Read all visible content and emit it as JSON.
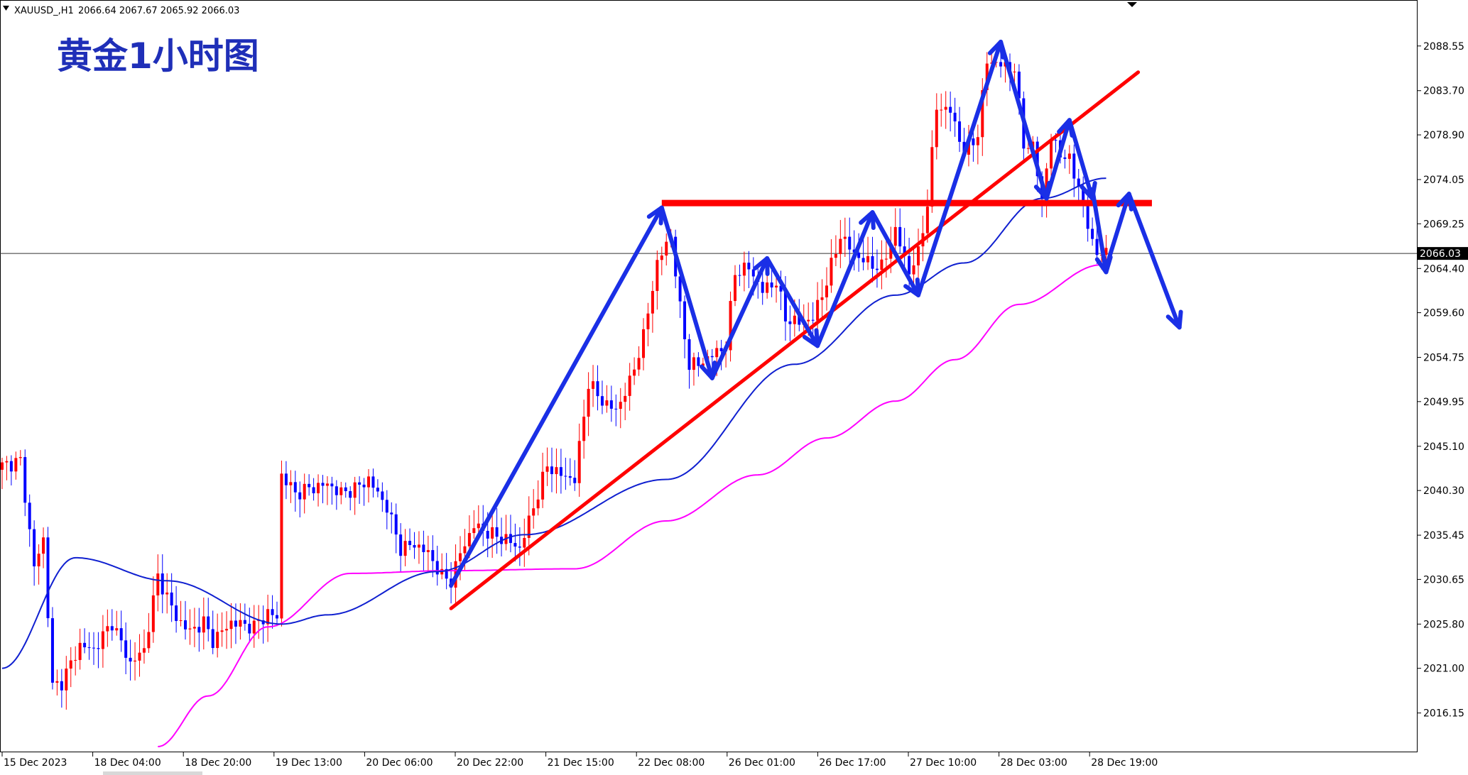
{
  "header": {
    "menu_icon": "triangle-down-icon",
    "symbol": "XAUUSD_,H1",
    "ohlc": "2066.64 2067.67 2065.92 2066.03"
  },
  "annotation_title": "黄金1小时图",
  "colors": {
    "bull_candle": "#ff0000",
    "bear_candle": "#0000ff",
    "ma_fast": "#1020d0",
    "ma_slow": "#ff00ff",
    "trendline": "#ff0000",
    "arrows": "#1a2fe6",
    "price_tag_bg": "#000000"
  },
  "current_price": {
    "value": 2066.03,
    "label": "2066.03"
  },
  "chart_data": {
    "type": "candlestick",
    "title": "黄金1小时图",
    "symbol": "XAUUSD_,H1",
    "timeframe": "H1",
    "y_range": [
      2012.5,
      2092.0
    ],
    "y_ticks": [
      "2088.55",
      "2083.70",
      "2078.90",
      "2074.05",
      "2069.25",
      "2064.40",
      "2059.60",
      "2054.75",
      "2049.95",
      "2045.10",
      "2040.30",
      "2035.45",
      "2030.65",
      "2025.80",
      "2021.00",
      "2016.15"
    ],
    "x_ticks": [
      "15 Dec 2023",
      "18 Dec 04:00",
      "18 Dec 20:00",
      "19 Dec 13:00",
      "20 Dec 06:00",
      "20 Dec 22:00",
      "21 Dec 15:00",
      "22 Dec 08:00",
      "26 Dec 01:00",
      "26 Dec 17:00",
      "27 Dec 10:00",
      "28 Dec 03:00",
      "28 Dec 19:00"
    ],
    "grid": false,
    "price_waypoints": [
      {
        "x": 0,
        "y": 2043.0
      },
      {
        "x": 4,
        "y": 2043.5
      },
      {
        "x": 7,
        "y": 2032.0
      },
      {
        "x": 9,
        "y": 2035.0
      },
      {
        "x": 11,
        "y": 2019.0
      },
      {
        "x": 13,
        "y": 2019.5
      },
      {
        "x": 17,
        "y": 2023.5
      },
      {
        "x": 20,
        "y": 2023.0
      },
      {
        "x": 24,
        "y": 2026.0
      },
      {
        "x": 28,
        "y": 2021.5
      },
      {
        "x": 31,
        "y": 2023.0
      },
      {
        "x": 34,
        "y": 2031.0
      },
      {
        "x": 38,
        "y": 2026.5
      },
      {
        "x": 41,
        "y": 2025.0
      },
      {
        "x": 44,
        "y": 2026.0
      },
      {
        "x": 46,
        "y": 2024.0
      },
      {
        "x": 50,
        "y": 2026.0
      },
      {
        "x": 55,
        "y": 2025.5
      },
      {
        "x": 58,
        "y": 2027.0
      },
      {
        "x": 60,
        "y": 2026.5
      },
      {
        "x": 61,
        "y": 2042.0
      },
      {
        "x": 64,
        "y": 2040.0
      },
      {
        "x": 67,
        "y": 2040.5
      },
      {
        "x": 71,
        "y": 2041.0
      },
      {
        "x": 74,
        "y": 2040.0
      },
      {
        "x": 77,
        "y": 2040.5
      },
      {
        "x": 80,
        "y": 2041.5
      },
      {
        "x": 84,
        "y": 2038.5
      },
      {
        "x": 87,
        "y": 2034.0
      },
      {
        "x": 90,
        "y": 2034.5
      },
      {
        "x": 93,
        "y": 2033.5
      },
      {
        "x": 96,
        "y": 2031.0
      },
      {
        "x": 98,
        "y": 2030.5
      },
      {
        "x": 100,
        "y": 2033.5
      },
      {
        "x": 103,
        "y": 2036.5
      },
      {
        "x": 107,
        "y": 2035.5
      },
      {
        "x": 110,
        "y": 2035.0
      },
      {
        "x": 113,
        "y": 2034.0
      },
      {
        "x": 116,
        "y": 2038.5
      },
      {
        "x": 119,
        "y": 2043.0
      },
      {
        "x": 122,
        "y": 2042.0
      },
      {
        "x": 125,
        "y": 2041.5
      },
      {
        "x": 128,
        "y": 2052.0
      },
      {
        "x": 131,
        "y": 2050.0
      },
      {
        "x": 134,
        "y": 2049.0
      },
      {
        "x": 137,
        "y": 2052.0
      },
      {
        "x": 140,
        "y": 2057.0
      },
      {
        "x": 143,
        "y": 2065.0
      },
      {
        "x": 146,
        "y": 2068.0
      },
      {
        "x": 148,
        "y": 2060.0
      },
      {
        "x": 150,
        "y": 2054.0
      },
      {
        "x": 152,
        "y": 2054.0
      },
      {
        "x": 155,
        "y": 2055.0
      },
      {
        "x": 158,
        "y": 2056.0
      },
      {
        "x": 160,
        "y": 2064.0
      },
      {
        "x": 163,
        "y": 2064.5
      },
      {
        "x": 166,
        "y": 2062.0
      },
      {
        "x": 169,
        "y": 2063.0
      },
      {
        "x": 171,
        "y": 2059.0
      },
      {
        "x": 174,
        "y": 2058.5
      },
      {
        "x": 177,
        "y": 2059.0
      },
      {
        "x": 180,
        "y": 2063.0
      },
      {
        "x": 183,
        "y": 2068.0
      },
      {
        "x": 186,
        "y": 2066.0
      },
      {
        "x": 189,
        "y": 2065.0
      },
      {
        "x": 192,
        "y": 2064.5
      },
      {
        "x": 195,
        "y": 2068.5
      },
      {
        "x": 198,
        "y": 2064.0
      },
      {
        "x": 200,
        "y": 2066.0
      },
      {
        "x": 202,
        "y": 2071.5
      },
      {
        "x": 204,
        "y": 2082.0
      },
      {
        "x": 207,
        "y": 2081.5
      },
      {
        "x": 210,
        "y": 2077.0
      },
      {
        "x": 213,
        "y": 2079.0
      },
      {
        "x": 215,
        "y": 2087.0
      },
      {
        "x": 218,
        "y": 2086.5
      },
      {
        "x": 221,
        "y": 2086.0
      },
      {
        "x": 223,
        "y": 2078.0
      },
      {
        "x": 225,
        "y": 2077.5
      },
      {
        "x": 227,
        "y": 2072.0
      },
      {
        "x": 229,
        "y": 2078.5
      },
      {
        "x": 231,
        "y": 2077.0
      },
      {
        "x": 233,
        "y": 2076.0
      },
      {
        "x": 235,
        "y": 2073.5
      },
      {
        "x": 237,
        "y": 2069.0
      },
      {
        "x": 239,
        "y": 2066.0
      },
      {
        "x": 241,
        "y": 2066.0
      }
    ],
    "ma_fast": [
      {
        "x": 0,
        "y": 2021.0
      },
      {
        "x": 16,
        "y": 2033.0
      },
      {
        "x": 36,
        "y": 2030.5
      },
      {
        "x": 61,
        "y": 2025.8
      },
      {
        "x": 71,
        "y": 2026.8
      },
      {
        "x": 95,
        "y": 2031.5
      },
      {
        "x": 114,
        "y": 2035.5
      },
      {
        "x": 145,
        "y": 2041.5
      },
      {
        "x": 173,
        "y": 2054.0
      },
      {
        "x": 195,
        "y": 2061.5
      },
      {
        "x": 210,
        "y": 2065.0
      },
      {
        "x": 227,
        "y": 2072.0
      },
      {
        "x": 241,
        "y": 2074.2
      }
    ],
    "ma_slow": [
      {
        "x": 34,
        "y": 2012.5
      },
      {
        "x": 45,
        "y": 2018.0
      },
      {
        "x": 58,
        "y": 2025.5
      },
      {
        "x": 76,
        "y": 2031.3
      },
      {
        "x": 98,
        "y": 2031.6
      },
      {
        "x": 125,
        "y": 2031.8
      },
      {
        "x": 145,
        "y": 2037.0
      },
      {
        "x": 165,
        "y": 2042.0
      },
      {
        "x": 180,
        "y": 2046.0
      },
      {
        "x": 195,
        "y": 2050.0
      },
      {
        "x": 208,
        "y": 2054.5
      },
      {
        "x": 222,
        "y": 2060.5
      },
      {
        "x": 240,
        "y": 2064.8
      }
    ],
    "series": [
      {
        "name": "",
        "kind": "ma-fast",
        "color": "#1020d0"
      },
      {
        "name": "",
        "kind": "ma-slow",
        "color": "#ff00ff"
      }
    ],
    "annotations": {
      "horizontal_resistance": {
        "price": 2071.5,
        "from_x": 144,
        "to_x": 251
      },
      "rising_trendline": {
        "from": {
          "x": 98,
          "y": 2027.5
        },
        "to": {
          "x": 248,
          "y": 2085.7
        }
      },
      "zigzag_path": [
        {
          "x": 98,
          "y": 2030.0
        },
        {
          "x": 144,
          "y": 2071.0
        },
        {
          "x": 155,
          "y": 2052.5
        },
        {
          "x": 167,
          "y": 2065.5
        },
        {
          "x": 178,
          "y": 2056.0
        },
        {
          "x": 190,
          "y": 2070.5
        },
        {
          "x": 200,
          "y": 2061.5
        },
        {
          "x": 218,
          "y": 2089.0
        },
        {
          "x": 228,
          "y": 2072.0
        },
        {
          "x": 233,
          "y": 2080.5
        },
        {
          "x": 238,
          "y": 2072.0
        }
      ],
      "down_arrow_1": {
        "from": {
          "x": 238,
          "y": 2073.0
        },
        "to": {
          "x": 241,
          "y": 2064.0
        }
      },
      "up_arrow": {
        "from": {
          "x": 241,
          "y": 2064.5
        },
        "to": {
          "x": 246,
          "y": 2072.5
        }
      },
      "down_arrow_final": {
        "from": {
          "x": 246,
          "y": 2072.5
        },
        "to": {
          "x": 257,
          "y": 2058.0
        }
      }
    }
  }
}
